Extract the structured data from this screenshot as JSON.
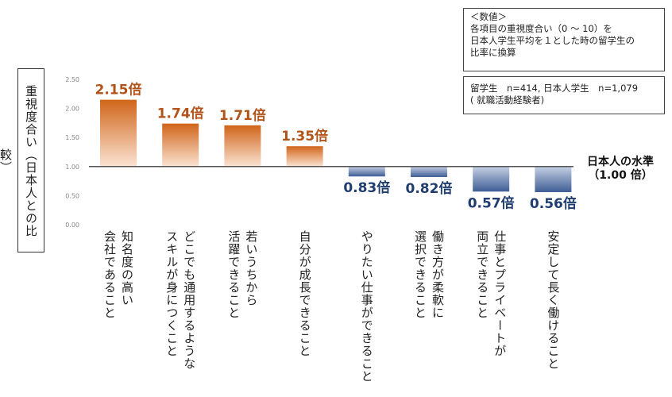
{
  "chart_data": {
    "type": "bar",
    "ylabel": "重視度合い（日本人との比較）",
    "ylim": [
      0,
      2.5
    ],
    "yticks": [
      "0.00",
      "0.50",
      "1.00",
      "1.50",
      "2.00",
      "2.50"
    ],
    "baseline": 1.0,
    "baseline_label": [
      "日本人の水準",
      "（1.00 倍）"
    ],
    "categories": [
      [
        "知名度の高い",
        "会社であること"
      ],
      [
        "どこでも通用するような",
        "スキルが身につくこと"
      ],
      [
        "若いうちから",
        "活躍できること"
      ],
      [
        "自分が成長できること"
      ],
      [
        "やりたい仕事ができること"
      ],
      [
        "働き方が柔軟に",
        "選択できること"
      ],
      [
        "仕事とプライベートが",
        "両立できること"
      ],
      [
        "安定して長く働けること"
      ]
    ],
    "values": [
      2.15,
      1.74,
      1.71,
      1.35,
      0.83,
      0.82,
      0.57,
      0.56
    ],
    "value_labels": [
      "2.15倍",
      "1.74倍",
      "1.71倍",
      "1.35倍",
      "0.83倍",
      "0.82倍",
      "0.57倍",
      "0.56倍"
    ],
    "colors": {
      "above": "#d0651a",
      "above_fade": "#fbe3d2",
      "below": "#3f5d95",
      "below_fade": "#c5d0e4",
      "above_label": "#b2531a",
      "below_label": "#1f3d6e"
    }
  },
  "notes": {
    "definition": [
      "＜数値＞",
      "各項目の重視度合い（0 ～ 10）を",
      "日本人学生平均を１とした時の留学生の",
      "比率に換算"
    ],
    "sample": [
      "留学生　n=414, 日本人学生　n=1,079",
      "( 就職活動経験者)"
    ]
  }
}
